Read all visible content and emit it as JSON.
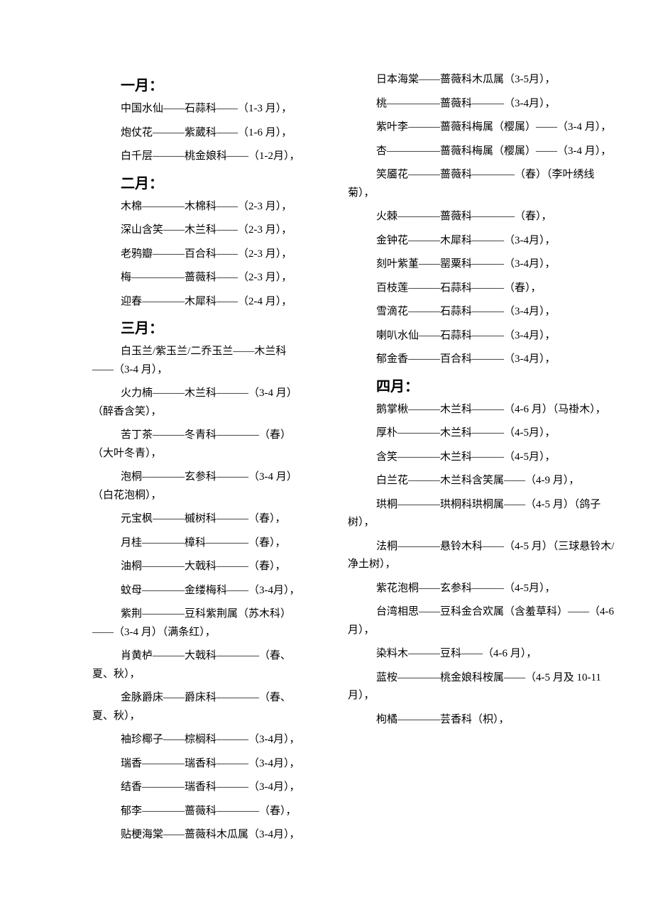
{
  "leftColumn": {
    "sections": [
      {
        "header": "一月：",
        "entries": [
          "中国水仙——石蒜科——（1-3 月），",
          "炮仗花———紫葳科——（1-6 月），",
          "白千层———桃金娘科——（1-2月），"
        ]
      },
      {
        "header": "二月：",
        "entries": [
          "木棉————木棉科——（2-3 月），",
          "深山含笑——木兰科——（2-3 月），",
          "老鸦瓣———百合科——（2-3 月），",
          "梅—————蔷薇科——（2-3 月），",
          "迎春————木犀科——（2-4 月），"
        ]
      },
      {
        "header": "三月：",
        "entries": [
          "白玉兰/紫玉兰/二乔玉兰——木兰科——（3-4 月），",
          "火力楠———木兰科———（3-4 月）（醉香含笑），",
          "苦丁茶———冬青科————（春）（大叶冬青），",
          "泡桐————玄参科———（3-4 月）（白花泡桐），",
          "元宝枫———槭树科———（春），",
          "月桂————樟科————（春），",
          "油桐————大戟科———（春），",
          "蚊母————金缕梅科——（3-4月），",
          "紫荆————豆科紫荆属（苏木科）——（3-4 月）（满条红），",
          "肖黄栌———大戟科————（春、夏、秋），",
          "金脉爵床——爵床科————（春、夏、秋），",
          "袖珍椰子——棕榈科———（3-4月），",
          "瑞香————瑞香科———（3-4月），",
          "结香————瑞香科———（3-4月），",
          "郁李————蔷薇科————（春），",
          "贴梗海棠——蔷薇科木瓜属（3-4月），"
        ]
      }
    ]
  },
  "rightColumn": {
    "sections": [
      {
        "header": "",
        "entries": [
          "日本海棠——蔷薇科木瓜属（3-5月），",
          "桃—————蔷薇科———（3-4月），",
          "紫叶李———蔷薇科梅属（樱属）——（3-4 月），",
          "杏—————蔷薇科梅属（樱属）——（3-4 月），",
          "笑靥花———蔷薇科————（春）（李叶绣线菊），",
          "火棘————蔷薇科————（春），",
          "金钟花———木犀科———（3-4月），",
          "刻叶紫堇——罂粟科———（3-4月），",
          "百枝莲———石蒜科———（春），",
          "雪滴花———石蒜科———（3-4月），",
          "喇叭水仙——石蒜科———（3-4月），",
          "郁金香———百合科———（3-4月），"
        ]
      },
      {
        "header": "四月：",
        "entries": [
          "鹅掌楸———木兰科———（4-6 月）（马褂木），",
          "厚朴————木兰科———（4-5月），",
          "含笑————木兰科———（4-5月），",
          "白兰花———木兰科含笑属——（4-9 月），",
          "珙桐————珙桐科珙桐属——（4-5 月）（鸽子树），",
          "法桐————悬铃木科——（4-5 月）（三球悬铃木/净土树），",
          "紫花泡桐——玄参科———（4-5月），",
          "台湾相思——豆科金合欢属（含羞草科）——（4-6 月），",
          "染料木———豆科——（4-6 月），",
          "蓝桉————桃金娘科桉属——（4-5 月及 10-11 月），",
          "枸橘————芸香科（枳），"
        ]
      }
    ]
  }
}
